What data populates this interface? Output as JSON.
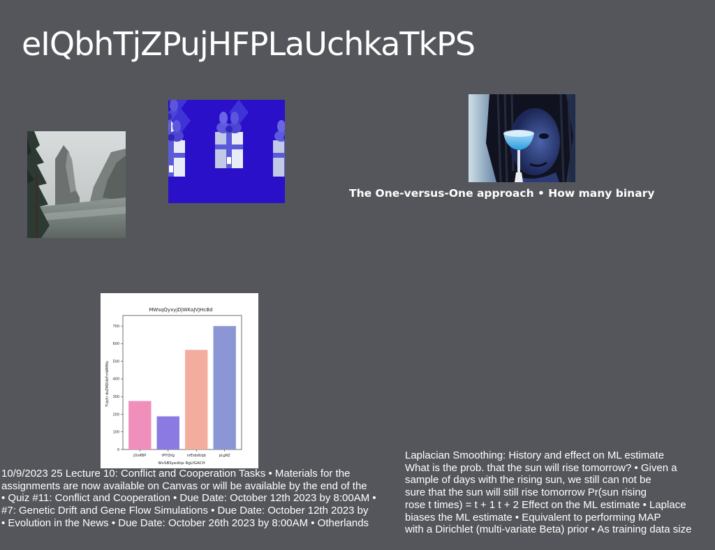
{
  "slide": {
    "title": "eIQbhTjZPujHFPLaUchkaTkPS",
    "caption": "The One-versus-One approach • How many binary"
  },
  "images": {
    "valley": "valley-landscape-photo",
    "gifts": "gift-boxes-pattern-photo",
    "portrait": "portrait-with-glass-photo"
  },
  "chart_data": {
    "type": "bar",
    "title": "MWsqQyxyjDjWKaJVJHcBd",
    "xlabel": "WvSBSyedlqs RgLfGACH",
    "ylabel": "TUpXr dsZMDUbFmWMMu",
    "categories": [
      "jOxRBP",
      "tPYQVg",
      "nrEsbdUqb",
      "pLgNZ"
    ],
    "values": [
      275,
      188,
      565,
      700
    ],
    "colors": [
      "#f08fbb",
      "#8a7ae2",
      "#f2ad9e",
      "#8d96d4"
    ],
    "ylim": [
      0,
      760
    ],
    "yticks": [
      0,
      100,
      200,
      300,
      400,
      500,
      600,
      700
    ],
    "grid": false
  },
  "left_text": {
    "lines": [
      "10/9/2023 25 Lecture 10: Conflict and Cooperation Tasks • Materials for the",
      "assignments are now available on Canvas or will be available by the end of the",
      "• Quiz #11: Conflict and Cooperation • Due Date: October 12th 2023 by 8:00AM •",
      "#7: Genetic Drift and Gene Flow Simulations • Due Date: October 12th 2023 by",
      "• Evolution in the News • Due Date: October 26th 2023 by 8:00AM • Otherlands"
    ]
  },
  "right_text": {
    "lines": [
      "Laplacian Smoothing: History and effect on ML estimate",
      "What is the prob. that the sun will rise tomorrow? • Given a",
      "sample of days with the rising sun, we still can not be",
      "sure that the sun will still rise tomorrow Pr(sun rising",
      "rose t times) = t + 1 t + 2 Effect on the ML estimate • Laplace",
      "biases the ML estimate • Equivalent to performing MAP",
      "with a Dirichlet (multi-variate Beta) prior • As training data size"
    ]
  }
}
